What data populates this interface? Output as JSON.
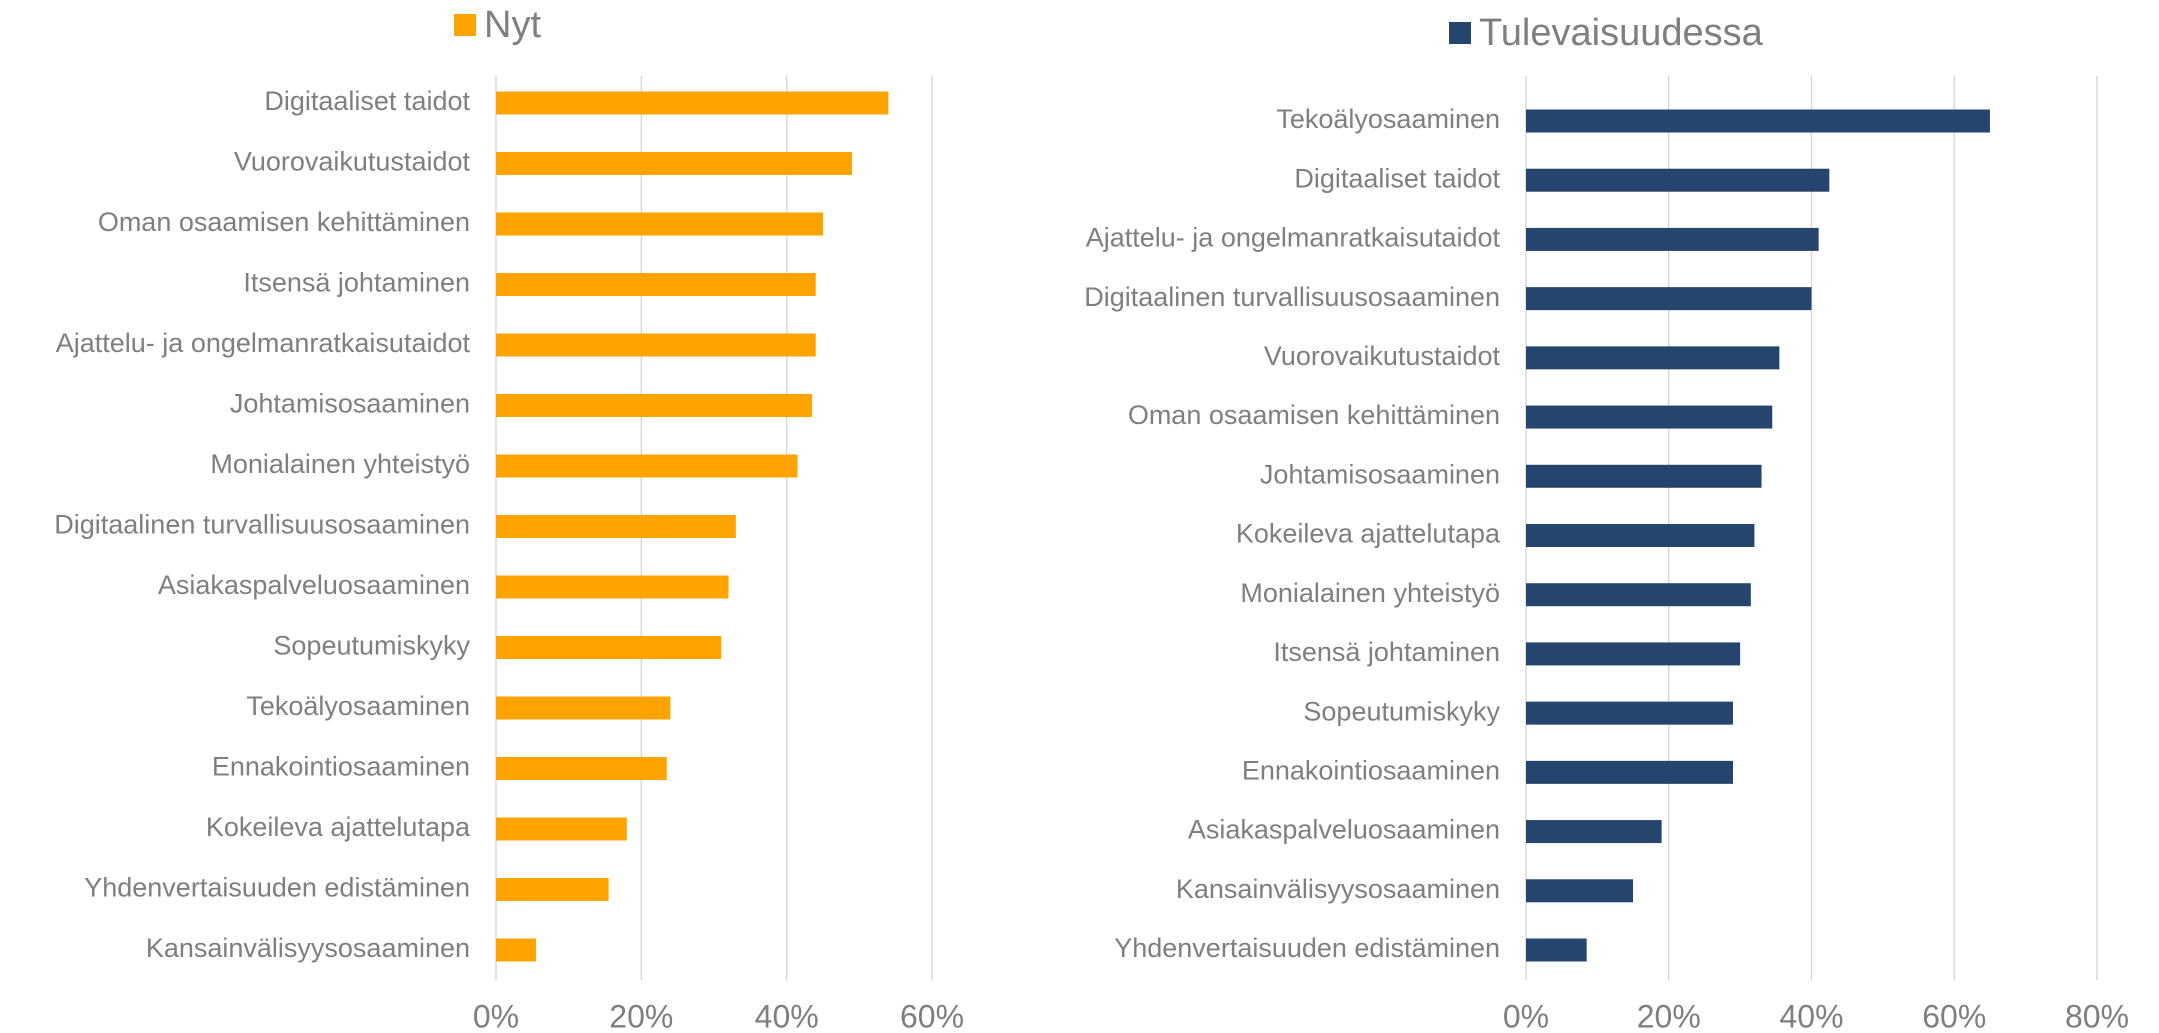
{
  "chart_data": [
    {
      "type": "bar",
      "orientation": "horizontal",
      "categories": [
        "Digitaaliset taidot",
        "Vuorovaikutustaidot",
        "Oman osaamisen kehittäminen",
        "Itsensä johtaminen",
        "Ajattelu- ja ongelmanratkaisutaidot",
        "Johtamisosaaminen",
        "Monialainen yhteistyö",
        "Digitaalinen turvallisuusosaaminen",
        "Asiakaspalveluosaaminen",
        "Sopeutumiskyky",
        "Tekoälyosaaminen",
        "Ennakointiosaaminen",
        "Kokeileva ajattelutapa",
        "Yhdenvertaisuuden edistäminen",
        "Kansainvälisyysosaaminen"
      ],
      "series": [
        {
          "name": "Nyt",
          "color": "#ffa300",
          "values": [
            54,
            49,
            45,
            44,
            44,
            43.5,
            41.5,
            33,
            32,
            31,
            24,
            23.5,
            18,
            15.5,
            5.5
          ]
        }
      ],
      "xlim": [
        0,
        60
      ],
      "xticks": [
        {
          "value": 0,
          "label": "0%"
        },
        {
          "value": 20,
          "label": "20%"
        },
        {
          "value": 40,
          "label": "40%"
        },
        {
          "value": 60,
          "label": "60%"
        }
      ],
      "grid": true,
      "legend": "top"
    },
    {
      "type": "bar",
      "orientation": "horizontal",
      "categories": [
        "Tekoälyosaaminen",
        "Digitaaliset taidot",
        "Ajattelu- ja ongelmanratkaisutaidot",
        "Digitaalinen turvallisuusosaaminen",
        "Vuorovaikutustaidot",
        "Oman osaamisen kehittäminen",
        "Johtamisosaaminen",
        "Kokeileva ajattelutapa",
        "Monialainen yhteistyö",
        "Itsensä johtaminen",
        "Sopeutumiskyky",
        "Ennakointiosaaminen",
        "Asiakaspalveluosaaminen",
        "Kansainvälisyysosaaminen",
        "Yhdenvertaisuuden edistäminen"
      ],
      "series": [
        {
          "name": "Tulevaisuudessa",
          "color": "#25456e",
          "values": [
            65,
            42.5,
            41,
            40,
            35.5,
            34.5,
            33,
            32,
            31.5,
            30,
            29,
            29,
            19,
            15,
            8.5
          ]
        }
      ],
      "xlim": [
        0,
        80
      ],
      "xticks": [
        {
          "value": 0,
          "label": "0%"
        },
        {
          "value": 20,
          "label": "20%"
        },
        {
          "value": 40,
          "label": "40%"
        },
        {
          "value": 60,
          "label": "60%"
        },
        {
          "value": 80,
          "label": "80%"
        }
      ],
      "grid": true,
      "legend": "top"
    }
  ]
}
